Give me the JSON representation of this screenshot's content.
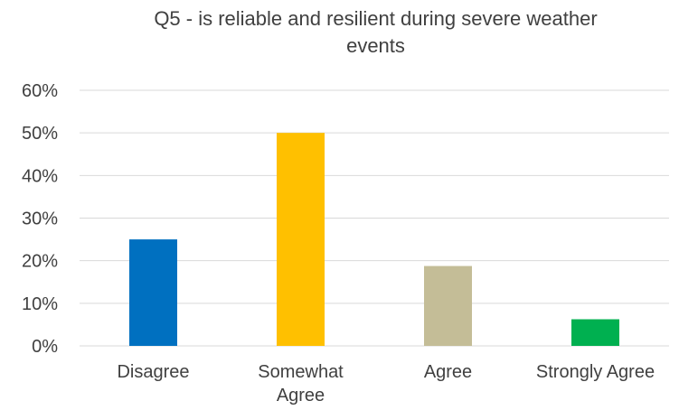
{
  "chart_data": {
    "type": "bar",
    "title_line1": "Q5 - is reliable and resilient during severe weather",
    "title_line2": "events",
    "categories": [
      [
        "Disagree"
      ],
      [
        "Somewhat",
        "Agree"
      ],
      [
        "Agree"
      ],
      [
        "Strongly Agree"
      ]
    ],
    "values": [
      25,
      50,
      18.75,
      6.25
    ],
    "colors": [
      "#0070C0",
      "#FFC000",
      "#C4BD97",
      "#00B050"
    ],
    "ylim": [
      0,
      60
    ],
    "yticks": [
      0,
      10,
      20,
      30,
      40,
      50,
      60
    ],
    "ytick_labels": [
      "0%",
      "10%",
      "20%",
      "30%",
      "40%",
      "50%",
      "60%"
    ],
    "grid": true,
    "legend": "none"
  }
}
